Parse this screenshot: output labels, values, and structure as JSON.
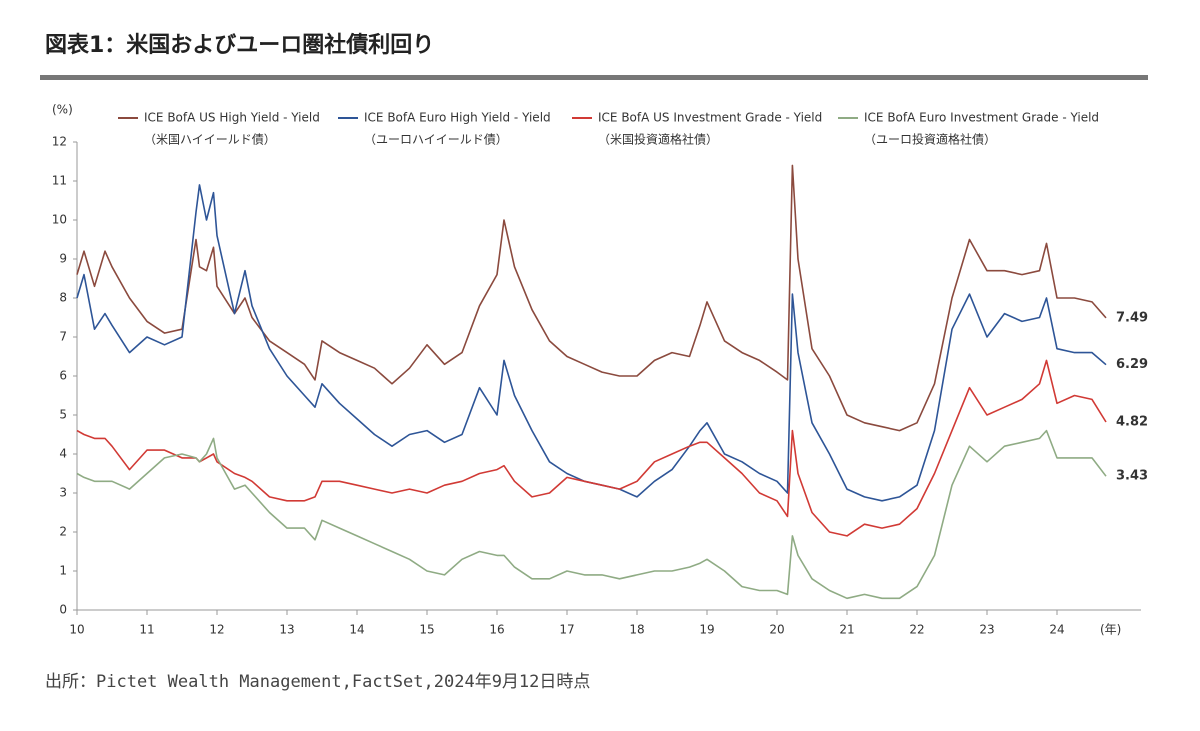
{
  "chart_data": {
    "type": "line",
    "title": "図表1：米国およびユーロ圏社債利回り",
    "y_unit": "(%)",
    "x_unit": "(年)",
    "source": "出所：Pictet Wealth Management,FactSet,2024年9月12日時点",
    "x": [
      10.0,
      10.1,
      10.25,
      10.4,
      10.5,
      10.75,
      11.0,
      11.25,
      11.5,
      11.7,
      11.75,
      11.85,
      11.95,
      12.0,
      12.25,
      12.4,
      12.5,
      12.75,
      13.0,
      13.25,
      13.4,
      13.5,
      13.75,
      14.0,
      14.25,
      14.5,
      14.75,
      15.0,
      15.25,
      15.5,
      15.75,
      16.0,
      16.1,
      16.25,
      16.5,
      16.75,
      17.0,
      17.25,
      17.5,
      17.75,
      18.0,
      18.25,
      18.5,
      18.75,
      18.9,
      19.0,
      19.25,
      19.5,
      19.75,
      20.0,
      20.15,
      20.22,
      20.3,
      20.5,
      20.75,
      21.0,
      21.25,
      21.5,
      21.75,
      22.0,
      22.25,
      22.5,
      22.75,
      23.0,
      23.25,
      23.5,
      23.75,
      23.85,
      24.0,
      24.25,
      24.5,
      24.7
    ],
    "series": [
      {
        "name": "ICE BofA US High Yield - Yield",
        "name_ja": "（米国ハイイールド債）",
        "color": "#8b4a3e",
        "values": [
          8.6,
          9.2,
          8.3,
          9.2,
          8.8,
          8.0,
          7.4,
          7.1,
          7.2,
          9.5,
          8.8,
          8.7,
          9.3,
          8.3,
          7.6,
          8.0,
          7.5,
          6.9,
          6.6,
          6.3,
          5.9,
          6.9,
          6.6,
          6.4,
          6.2,
          5.8,
          6.2,
          6.8,
          6.3,
          6.6,
          7.8,
          8.6,
          10.0,
          8.8,
          7.7,
          6.9,
          6.5,
          6.3,
          6.1,
          6.0,
          6.0,
          6.4,
          6.6,
          6.5,
          7.3,
          7.9,
          6.9,
          6.6,
          6.4,
          6.1,
          5.9,
          11.4,
          9.0,
          6.7,
          6.0,
          5.0,
          4.8,
          4.7,
          4.6,
          4.8,
          5.8,
          8.0,
          9.5,
          8.7,
          8.7,
          8.6,
          8.7,
          9.4,
          8.0,
          8.0,
          7.9,
          7.49
        ]
      },
      {
        "name": "ICE BofA Euro High Yield - Yield",
        "name_ja": "（ユーロハイイールド債）",
        "color": "#2e5597",
        "values": [
          8.0,
          8.6,
          7.2,
          7.6,
          7.3,
          6.6,
          7.0,
          6.8,
          7.0,
          10.2,
          10.9,
          10.0,
          10.7,
          9.6,
          7.6,
          8.7,
          7.8,
          6.7,
          6.0,
          5.5,
          5.2,
          5.8,
          5.3,
          4.9,
          4.5,
          4.2,
          4.5,
          4.6,
          4.3,
          4.5,
          5.7,
          5.0,
          6.4,
          5.5,
          4.6,
          3.8,
          3.5,
          3.3,
          3.2,
          3.1,
          2.9,
          3.3,
          3.6,
          4.2,
          4.6,
          4.8,
          4.0,
          3.8,
          3.5,
          3.3,
          3.0,
          8.1,
          6.6,
          4.8,
          4.0,
          3.1,
          2.9,
          2.8,
          2.9,
          3.2,
          4.6,
          7.2,
          8.1,
          7.0,
          7.6,
          7.4,
          7.5,
          8.0,
          6.7,
          6.6,
          6.6,
          6.29
        ]
      },
      {
        "name": "ICE BofA US Investment Grade - Yield",
        "name_ja": "（米国投資適格社債）",
        "color": "#d13a35",
        "values": [
          4.6,
          4.5,
          4.4,
          4.4,
          4.2,
          3.6,
          4.1,
          4.1,
          3.9,
          3.9,
          3.8,
          3.9,
          4.0,
          3.8,
          3.5,
          3.4,
          3.3,
          2.9,
          2.8,
          2.8,
          2.9,
          3.3,
          3.3,
          3.2,
          3.1,
          3.0,
          3.1,
          3.0,
          3.2,
          3.3,
          3.5,
          3.6,
          3.7,
          3.3,
          2.9,
          3.0,
          3.4,
          3.3,
          3.2,
          3.1,
          3.3,
          3.8,
          4.0,
          4.2,
          4.3,
          4.3,
          3.9,
          3.5,
          3.0,
          2.8,
          2.4,
          4.6,
          3.5,
          2.5,
          2.0,
          1.9,
          2.2,
          2.1,
          2.2,
          2.6,
          3.5,
          4.6,
          5.7,
          5.0,
          5.2,
          5.4,
          5.8,
          6.4,
          5.3,
          5.5,
          5.4,
          4.82
        ]
      },
      {
        "name": "ICE BofA Euro Investment Grade - Yield",
        "name_ja": "（ユーロ投資適格社債）",
        "color": "#8fab84",
        "values": [
          3.5,
          3.4,
          3.3,
          3.3,
          3.3,
          3.1,
          3.5,
          3.9,
          4.0,
          3.9,
          3.8,
          4.0,
          4.4,
          3.9,
          3.1,
          3.2,
          3.0,
          2.5,
          2.1,
          2.1,
          1.8,
          2.3,
          2.1,
          1.9,
          1.7,
          1.5,
          1.3,
          1.0,
          0.9,
          1.3,
          1.5,
          1.4,
          1.4,
          1.1,
          0.8,
          0.8,
          1.0,
          0.9,
          0.9,
          0.8,
          0.9,
          1.0,
          1.0,
          1.1,
          1.2,
          1.3,
          1.0,
          0.6,
          0.5,
          0.5,
          0.4,
          1.9,
          1.4,
          0.8,
          0.5,
          0.3,
          0.4,
          0.3,
          0.3,
          0.6,
          1.4,
          3.2,
          4.2,
          3.8,
          4.2,
          4.3,
          4.4,
          4.6,
          3.9,
          3.9,
          3.9,
          3.43
        ]
      }
    ],
    "xlim": [
      10,
      25.2
    ],
    "xticks": [
      10,
      11,
      12,
      13,
      14,
      15,
      16,
      17,
      18,
      19,
      20,
      21,
      22,
      23,
      24
    ],
    "ylim": [
      0,
      12
    ],
    "yticks": [
      0,
      1,
      2,
      3,
      4,
      5,
      6,
      7,
      8,
      9,
      10,
      11,
      12
    ],
    "grid": false
  }
}
